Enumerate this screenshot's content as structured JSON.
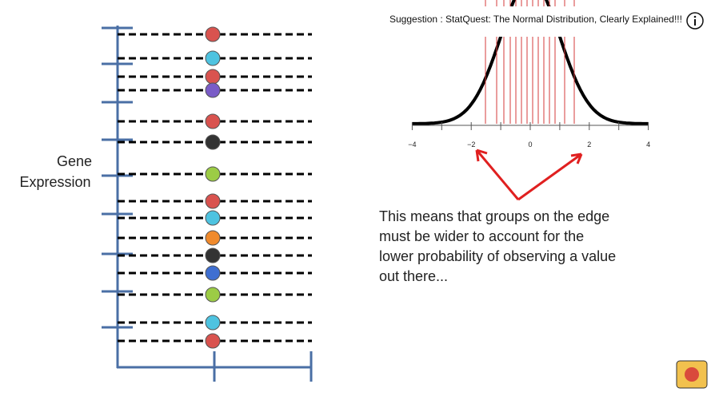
{
  "suggestion": "Suggestion : StatQuest: The Normal Distribution, Clearly Explained!!!",
  "y_axis_label": [
    "Gene",
    "Expression"
  ],
  "distribution_axis_labels": [
    "−4",
    "−2",
    "0",
    "2",
    "4"
  ],
  "explanation_lines": [
    "This means that groups on the edge",
    "must be wider to account for the",
    "lower probability of observing a value",
    "out there..."
  ]
}
